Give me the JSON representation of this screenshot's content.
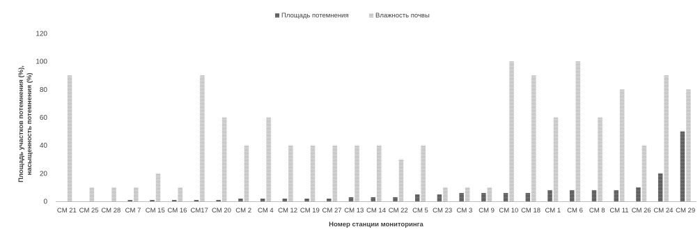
{
  "chart_data": {
    "type": "bar",
    "xlabel": "Номер станции мониторинга",
    "ylabel_lines": [
      "Площадь участков потемнения (%),",
      "насыщенность потемнения (%)"
    ],
    "ylim": [
      0,
      120
    ],
    "yticks": [
      0,
      20,
      40,
      60,
      80,
      100,
      120
    ],
    "grid": false,
    "legend_position": "top-center",
    "categories": [
      "CM 21",
      "CM 25",
      "CM 28",
      "CM 7",
      "CM 15",
      "CM 16",
      "CM17",
      "CM 20",
      "CM 2",
      "CM 4",
      "CM 12",
      "CM 19",
      "CM 27",
      "CM 13",
      "CM 14",
      "CM 22",
      "CM 5",
      "CM 23",
      "CM 3",
      "CM 9",
      "CM 10",
      "CM 18",
      "CM 1",
      "CM 6",
      "CM 8",
      "CM 11",
      "CM 26",
      "CM 24",
      "CM 29"
    ],
    "series": [
      {
        "name": "Площадь потемнения",
        "color": "#595959",
        "values": [
          0,
          0,
          0,
          1,
          1,
          1,
          1,
          1,
          2,
          2,
          2,
          2,
          2,
          3,
          3,
          3,
          5,
          5,
          6,
          6,
          6,
          6,
          8,
          8,
          8,
          8,
          10,
          20,
          50
        ]
      },
      {
        "name": "Влажность почвы",
        "color": "#bfbfbf",
        "values": [
          90,
          10,
          10,
          10,
          20,
          10,
          90,
          60,
          40,
          60,
          40,
          40,
          40,
          40,
          40,
          30,
          40,
          10,
          10,
          10,
          100,
          90,
          60,
          100,
          60,
          80,
          40,
          90,
          80
        ]
      }
    ]
  }
}
